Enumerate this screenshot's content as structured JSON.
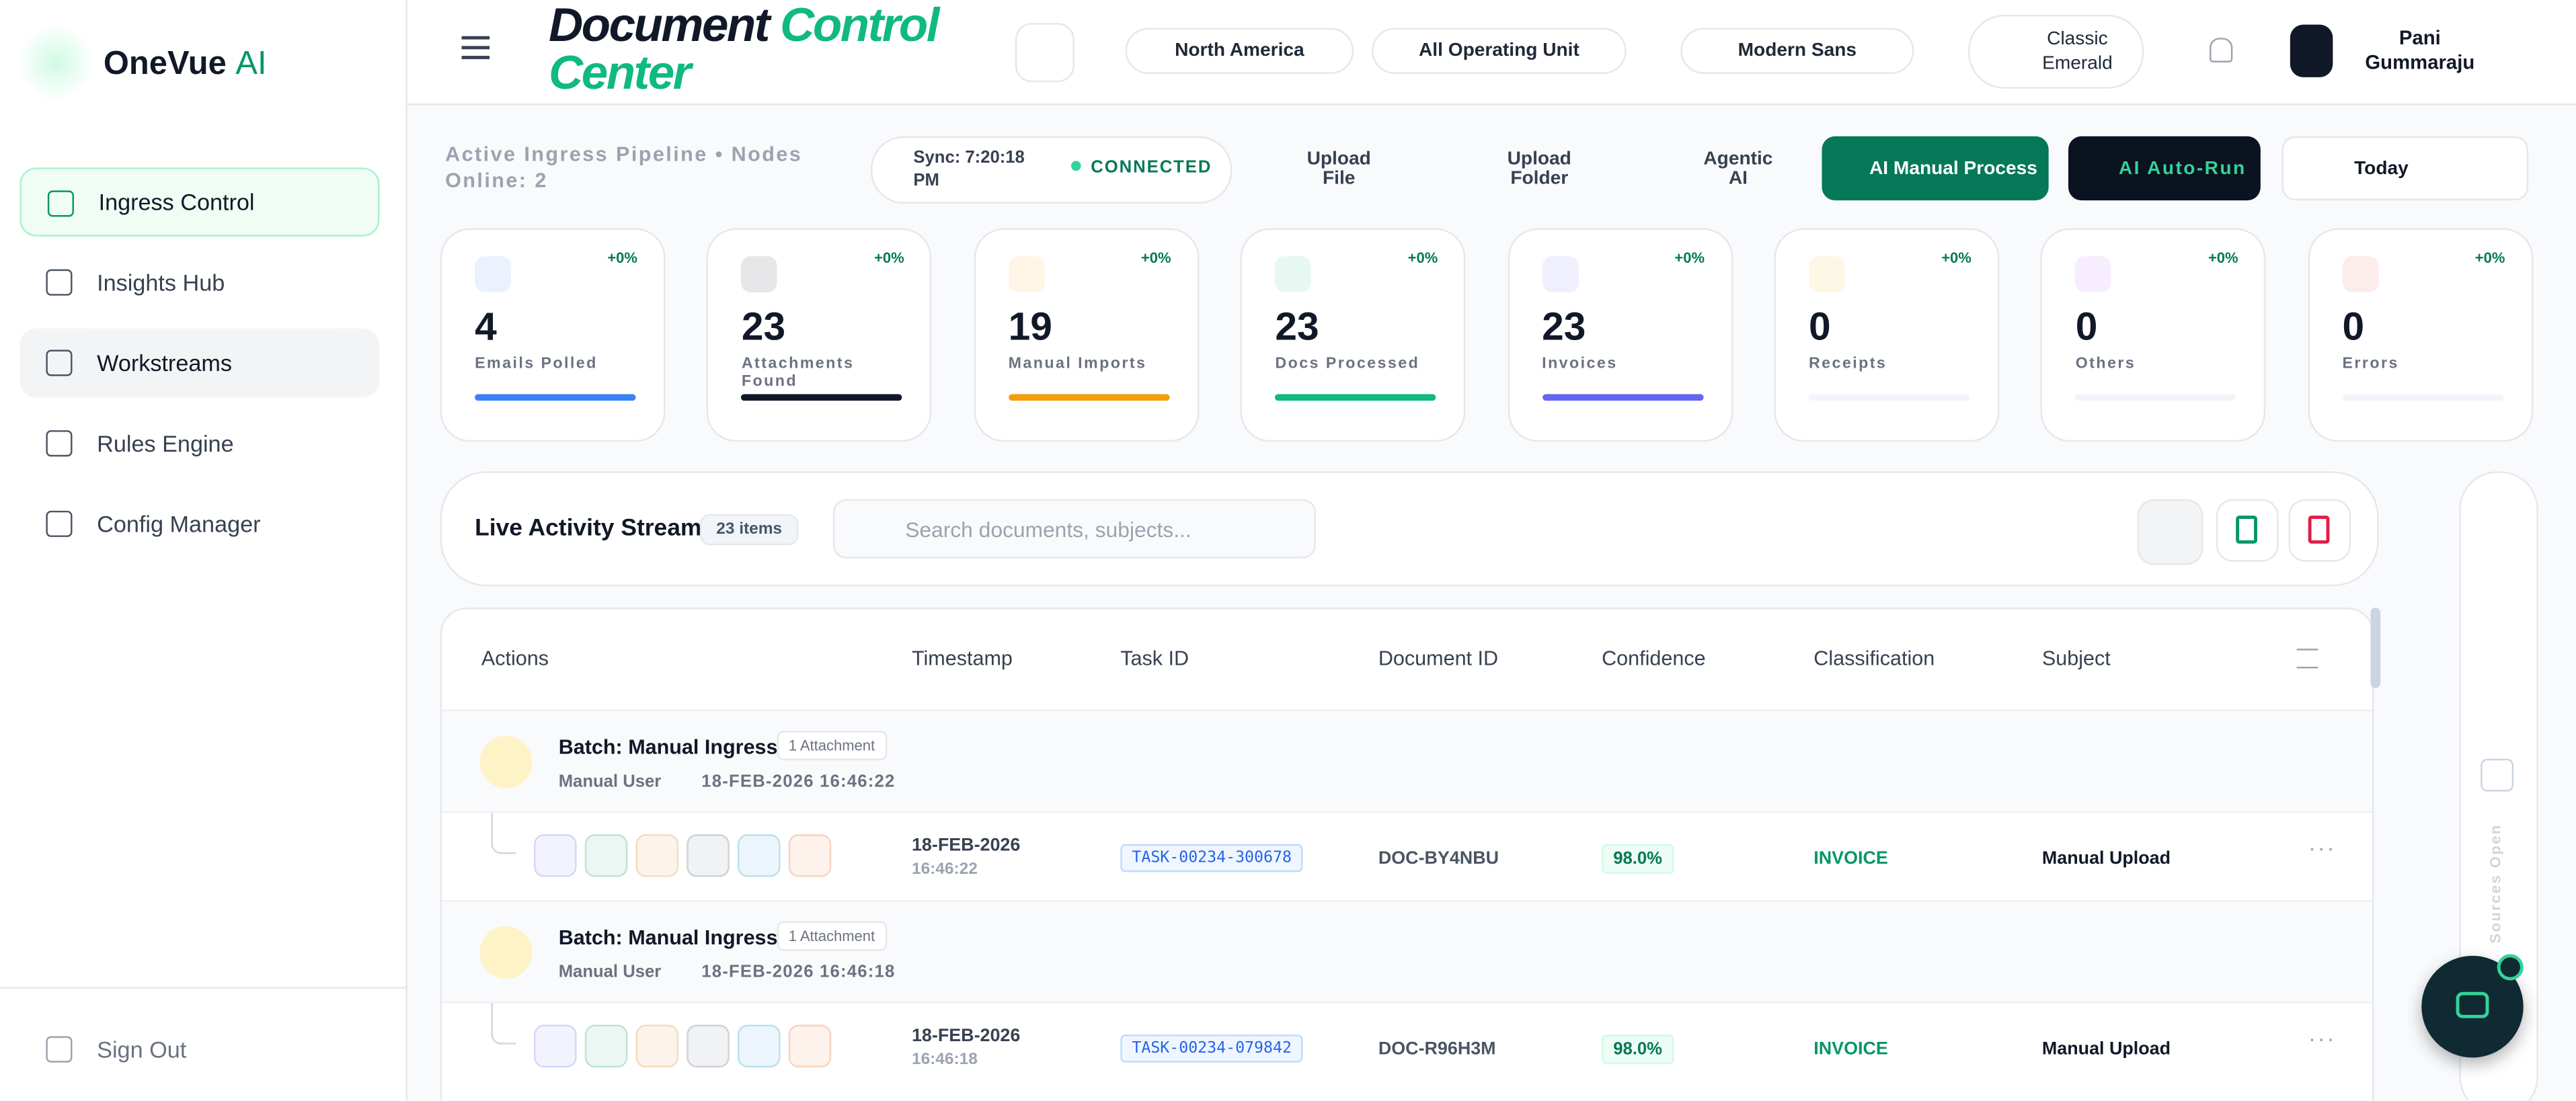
{
  "brand": {
    "name": "OneVue",
    "accent": "AI"
  },
  "nav": [
    "Ingress Control",
    "Insights Hub",
    "Workstreams",
    "Rules Engine",
    "Config Manager"
  ],
  "sign_out": "Sign Out",
  "header": {
    "title": "Document",
    "title_accent": "Control Center",
    "region": "North America",
    "unit": "All Operating Unit",
    "font": "Modern Sans",
    "theme": "Classic Emerald",
    "user": "Pani Gummaraju"
  },
  "toolbar": {
    "pipeline": "Active Ingress Pipeline • Nodes Online: 2",
    "sync": "Sync: 7:20:18 PM",
    "status": "CONNECTED",
    "upload_file": "Upload File",
    "upload_folder": "Upload Folder",
    "agentic": "Agentic AI",
    "manual": "AI Manual Process",
    "auto": "AI Auto-Run",
    "date": "Today"
  },
  "stats": [
    {
      "value": 4,
      "label": "Emails Polled",
      "trend": "+0%",
      "color": "#3b82f6"
    },
    {
      "value": 23,
      "label": "Attachments Found",
      "trend": "+0%",
      "color": "#111827"
    },
    {
      "value": 19,
      "label": "Manual Imports",
      "trend": "+0%",
      "color": "#f59e0b"
    },
    {
      "value": 23,
      "label": "Docs Processed",
      "trend": "+0%",
      "color": "#10b981"
    },
    {
      "value": 23,
      "label": "Invoices",
      "trend": "+0%",
      "color": "#6366f1"
    },
    {
      "value": 0,
      "label": "Receipts",
      "trend": "+0%",
      "color": "#eab308"
    },
    {
      "value": 0,
      "label": "Others",
      "trend": "+0%",
      "color": "#a855f7"
    },
    {
      "value": 0,
      "label": "Errors",
      "trend": "+0%",
      "color": "#ef4444"
    }
  ],
  "activity": {
    "title": "Live Activity Stream",
    "count": "23 items",
    "search": "Search documents, subjects..."
  },
  "table": {
    "headers": [
      "Actions",
      "Timestamp",
      "Task ID",
      "Document ID",
      "Confidence",
      "Classification",
      "Subject"
    ],
    "batches": [
      {
        "title": "Batch: Manual Ingress",
        "badge": "1 Attachment",
        "user": "Manual User",
        "time": "18-FEB-2026 16:46:22",
        "row": {
          "date": "18-FEB-2026",
          "time": "16:46:22",
          "task": "TASK-00234-300678",
          "doc": "DOC-BY4NBU",
          "confidence": "98.0%",
          "class": "INVOICE",
          "subject": "Manual Upload"
        }
      },
      {
        "title": "Batch: Manual Ingress",
        "badge": "1 Attachment",
        "user": "Manual User",
        "time": "18-FEB-2026 16:46:18",
        "row": {
          "date": "18-FEB-2026",
          "time": "16:46:18",
          "task": "TASK-00234-079842",
          "doc": "DOC-R96H3M",
          "confidence": "98.0%",
          "class": "INVOICE",
          "subject": "Manual Upload"
        }
      }
    ]
  },
  "side_panel": "Sources Open"
}
